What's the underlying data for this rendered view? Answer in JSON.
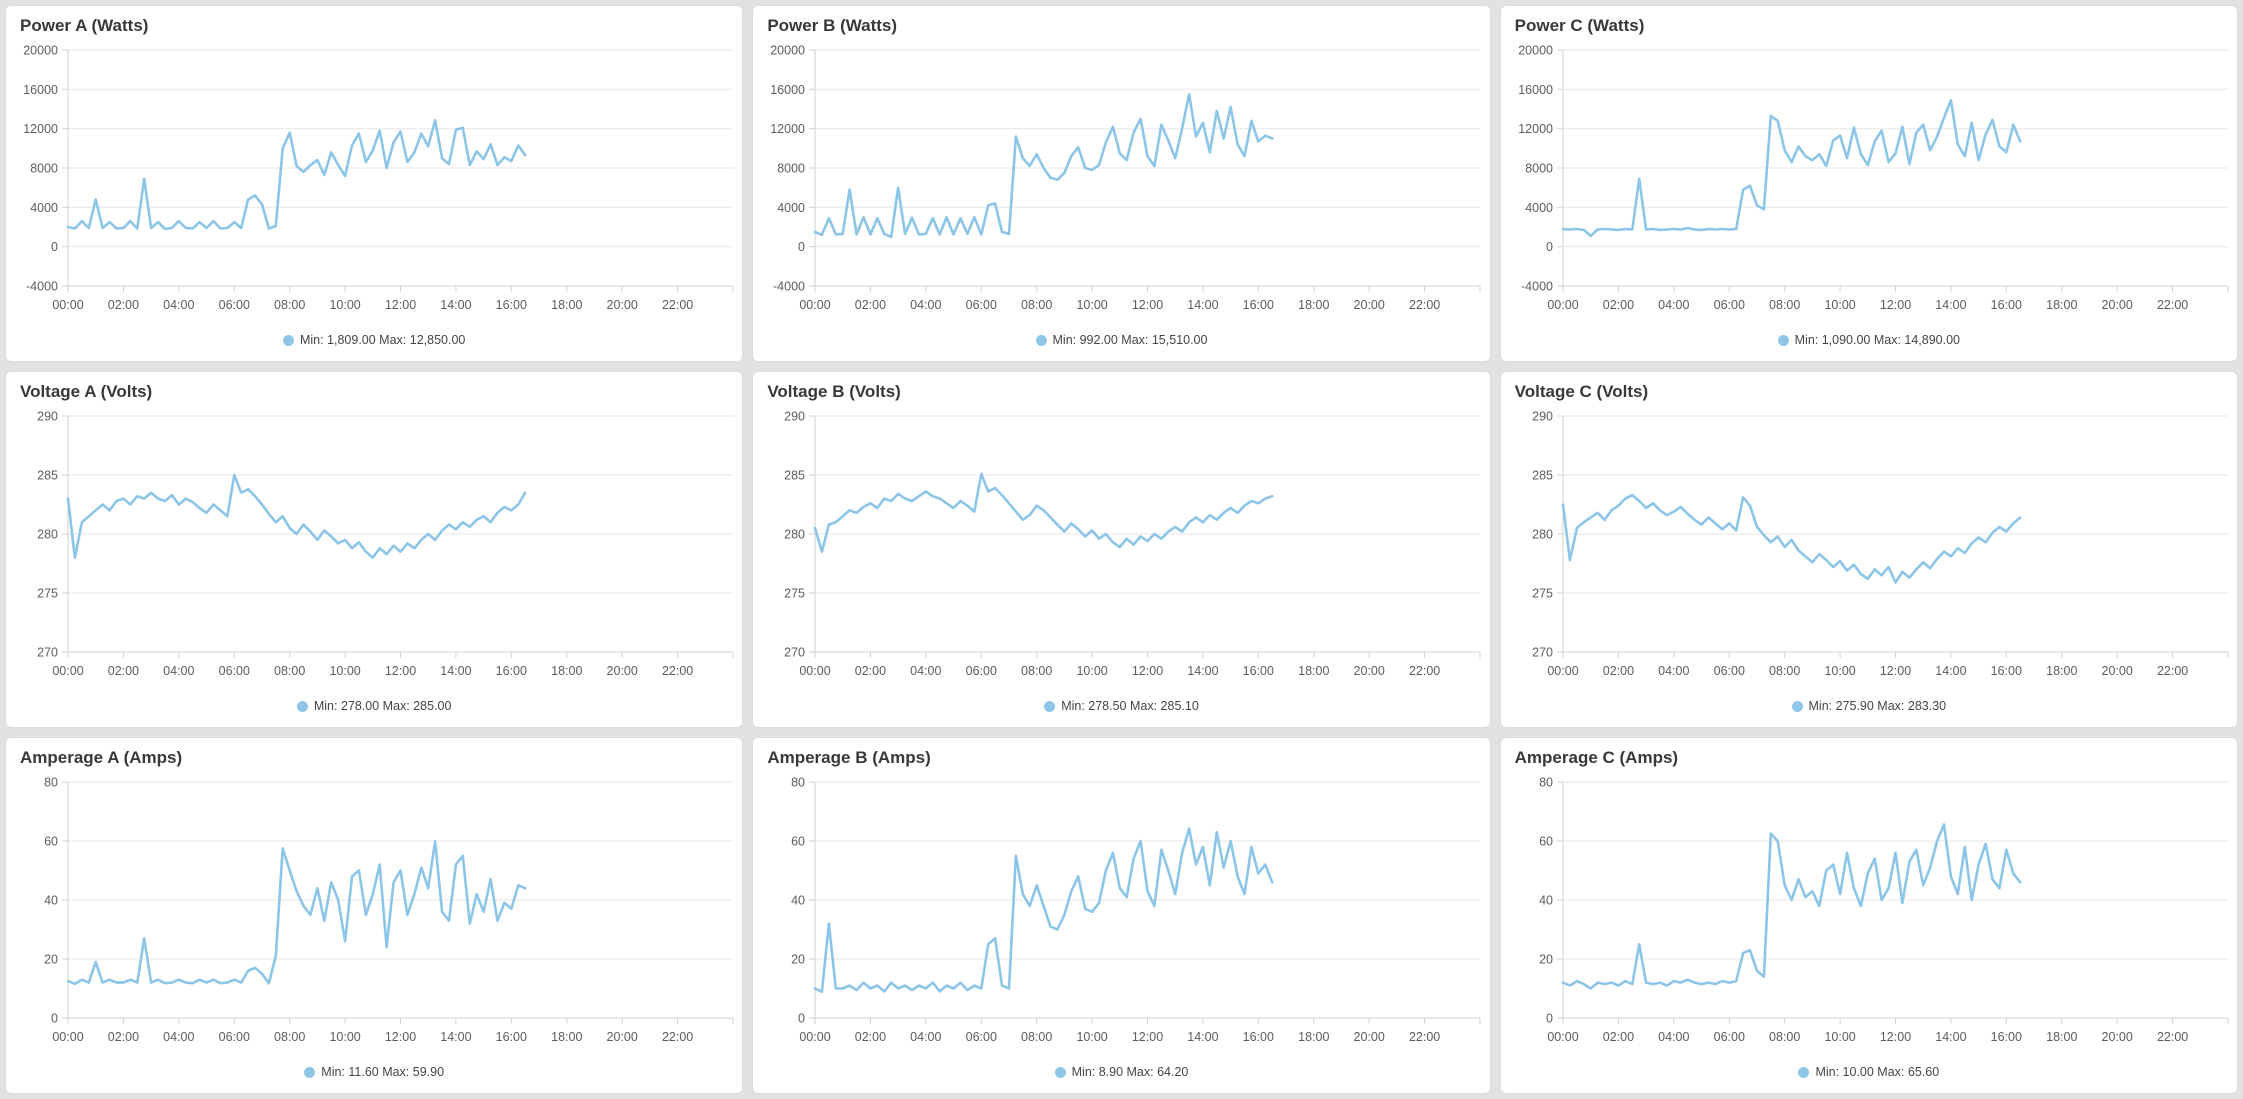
{
  "colors": {
    "page_bg": "#e2e2e2",
    "card_bg": "#ffffff",
    "card_border": "#dcdcdc",
    "series": "#8CC5E8",
    "legend_dot": "#8FC6E8",
    "grid": "#e7e7e7",
    "axis": "#d2d2d2",
    "tick_label": "#5c5c5c",
    "title_text": "#383838",
    "legend_text": "#454545"
  },
  "x_axis": {
    "labels": [
      "00:00",
      "02:00",
      "04:00",
      "06:00",
      "08:00",
      "10:00",
      "12:00",
      "14:00",
      "16:00",
      "18:00",
      "20:00",
      "22:00"
    ],
    "label_step_hours": 2,
    "domain": [
      0,
      24
    ]
  },
  "chart_data": [
    {
      "type": "line",
      "title": "Power A (Watts)",
      "legend_label": "Min: 1,809.00 Max: 12,850.00",
      "min": 1809.0,
      "max": 12850.0,
      "ylabel": "Watts",
      "y_min": -4000,
      "y_max": 20000,
      "y_ticks": [
        -4000,
        0,
        4000,
        8000,
        12000,
        16000,
        20000
      ],
      "x_domain": [
        0,
        24
      ],
      "series": {
        "start": 0,
        "step": 0.25,
        "values": [
          2000,
          1850,
          2600,
          1900,
          4800,
          1900,
          2500,
          1850,
          1900,
          2600,
          1850,
          6900,
          1900,
          2500,
          1809,
          1900,
          2600,
          1900,
          1850,
          2500,
          1900,
          2600,
          1850,
          1900,
          2500,
          1900,
          4800,
          5200,
          4300,
          1850,
          2100,
          10000,
          11600,
          8200,
          7600,
          8300,
          8800,
          7300,
          9600,
          8300,
          7200,
          10300,
          11500,
          8600,
          9800,
          11800,
          8000,
          10600,
          11700,
          8600,
          9600,
          11500,
          10200,
          12850,
          9000,
          8400,
          11900,
          12100,
          8300,
          9700,
          8900,
          10400,
          8300,
          9100,
          8700,
          10300,
          9300
        ]
      }
    },
    {
      "type": "line",
      "title": "Power B (Watts)",
      "legend_label": "Min: 992.00 Max: 15,510.00",
      "min": 992.0,
      "max": 15510.0,
      "ylabel": "Watts",
      "y_min": -4000,
      "y_max": 20000,
      "y_ticks": [
        -4000,
        0,
        4000,
        8000,
        12000,
        16000,
        20000
      ],
      "x_domain": [
        0,
        24
      ],
      "series": {
        "start": 0,
        "step": 0.25,
        "values": [
          1500,
          1200,
          2900,
          1250,
          1300,
          5800,
          1250,
          3000,
          1250,
          2900,
          1300,
          992,
          6000,
          1300,
          2950,
          1250,
          1300,
          2900,
          1250,
          3000,
          1250,
          2900,
          1300,
          3000,
          1250,
          4200,
          4400,
          1500,
          1300,
          11200,
          9000,
          8200,
          9400,
          8000,
          7000,
          6800,
          7500,
          9200,
          10100,
          8000,
          7800,
          8300,
          10600,
          12200,
          9500,
          8800,
          11600,
          13000,
          9200,
          8200,
          12400,
          10800,
          9000,
          12000,
          15510,
          11200,
          12600,
          9600,
          13800,
          11000,
          14200,
          10400,
          9200,
          12800,
          10700,
          11300,
          11000
        ]
      }
    },
    {
      "type": "line",
      "title": "Power C (Watts)",
      "legend_label": "Min: 1,090.00 Max: 14,890.00",
      "min": 1090.0,
      "max": 14890.0,
      "ylabel": "Watts",
      "y_min": -4000,
      "y_max": 20000,
      "y_ticks": [
        -4000,
        0,
        4000,
        8000,
        12000,
        16000,
        20000
      ],
      "x_domain": [
        0,
        24
      ],
      "series": {
        "start": 0,
        "step": 0.25,
        "values": [
          1800,
          1750,
          1800,
          1700,
          1090,
          1750,
          1800,
          1750,
          1700,
          1800,
          1750,
          6900,
          1750,
          1800,
          1700,
          1750,
          1800,
          1750,
          1900,
          1750,
          1700,
          1800,
          1750,
          1800,
          1750,
          1800,
          5800,
          6200,
          4200,
          3800,
          13300,
          12800,
          9800,
          8600,
          10200,
          9200,
          8800,
          9400,
          8200,
          10800,
          11300,
          9000,
          12100,
          9400,
          8300,
          10700,
          11800,
          8600,
          9500,
          12200,
          8400,
          11600,
          12400,
          9800,
          11200,
          13100,
          14890,
          10400,
          9200,
          12600,
          8800,
          11400,
          12900,
          10200,
          9600,
          12400,
          10700
        ]
      }
    },
    {
      "type": "line",
      "title": "Voltage A (Volts)",
      "legend_label": "Min: 278.00 Max: 285.00",
      "min": 278.0,
      "max": 285.0,
      "ylabel": "Volts",
      "y_min": 270,
      "y_max": 290,
      "y_ticks": [
        270,
        275,
        280,
        285,
        290
      ],
      "x_domain": [
        0,
        24
      ],
      "series": {
        "start": 0,
        "step": 0.25,
        "values": [
          283,
          278,
          281,
          281.5,
          282,
          282.5,
          282,
          282.8,
          283,
          282.5,
          283.2,
          283,
          283.5,
          283,
          282.8,
          283.3,
          282.5,
          283,
          282.7,
          282.2,
          281.8,
          282.5,
          282,
          281.5,
          285,
          283.5,
          283.8,
          283.2,
          282.5,
          281.7,
          281,
          281.5,
          280.5,
          280,
          280.8,
          280.2,
          279.5,
          280.3,
          279.8,
          279.2,
          279.5,
          278.8,
          279.3,
          278.5,
          278,
          278.8,
          278.3,
          279,
          278.5,
          279.2,
          278.8,
          279.5,
          280,
          279.5,
          280.3,
          280.8,
          280.4,
          281,
          280.6,
          281.2,
          281.5,
          281,
          281.8,
          282.3,
          282,
          282.5,
          283.5
        ]
      }
    },
    {
      "type": "line",
      "title": "Voltage B (Volts)",
      "legend_label": "Min: 278.50 Max: 285.10",
      "min": 278.5,
      "max": 285.1,
      "ylabel": "Volts",
      "y_min": 270,
      "y_max": 290,
      "y_ticks": [
        270,
        275,
        280,
        285,
        290
      ],
      "x_domain": [
        0,
        24
      ],
      "series": {
        "start": 0,
        "step": 0.25,
        "values": [
          280.5,
          278.5,
          280.8,
          281,
          281.5,
          282,
          281.8,
          282.3,
          282.6,
          282.2,
          283,
          282.8,
          283.4,
          283,
          282.8,
          283.2,
          283.6,
          283.2,
          283,
          282.6,
          282.2,
          282.8,
          282.4,
          281.9,
          285.1,
          283.6,
          283.9,
          283.3,
          282.6,
          281.9,
          281.2,
          281.6,
          282.4,
          282,
          281.4,
          280.8,
          280.2,
          280.9,
          280.4,
          279.8,
          280.3,
          279.6,
          280,
          279.3,
          278.9,
          279.6,
          279.1,
          279.8,
          279.4,
          280,
          279.6,
          280.2,
          280.6,
          280.2,
          281,
          281.4,
          281,
          281.6,
          281.2,
          281.8,
          282.2,
          281.8,
          282.4,
          282.8,
          282.6,
          283,
          283.2
        ]
      }
    },
    {
      "type": "line",
      "title": "Voltage C (Volts)",
      "legend_label": "Min: 275.90 Max: 283.30",
      "min": 275.9,
      "max": 283.3,
      "ylabel": "Volts",
      "y_min": 270,
      "y_max": 290,
      "y_ticks": [
        270,
        275,
        280,
        285,
        290
      ],
      "x_domain": [
        0,
        24
      ],
      "series": {
        "start": 0,
        "step": 0.25,
        "values": [
          282.5,
          277.8,
          280.5,
          281,
          281.4,
          281.8,
          281.2,
          282,
          282.4,
          283,
          283.3,
          282.8,
          282.2,
          282.6,
          282,
          281.6,
          281.9,
          282.3,
          281.7,
          281.2,
          280.8,
          281.4,
          280.9,
          280.4,
          280.9,
          280.3,
          283.1,
          282.4,
          280.6,
          279.9,
          279.3,
          279.8,
          278.9,
          279.5,
          278.6,
          278.1,
          277.6,
          278.3,
          277.8,
          277.2,
          277.7,
          276.9,
          277.4,
          276.6,
          276.2,
          277,
          276.5,
          277.2,
          275.9,
          276.8,
          276.3,
          277,
          277.6,
          277.1,
          277.9,
          278.5,
          278.1,
          278.8,
          278.4,
          279.2,
          279.7,
          279.3,
          280.1,
          280.6,
          280.2,
          280.9,
          281.4
        ]
      }
    },
    {
      "type": "line",
      "title": "Amperage A (Amps)",
      "legend_label": "Min: 11.60 Max: 59.90",
      "min": 11.6,
      "max": 59.9,
      "ylabel": "Amps",
      "y_min": 0,
      "y_max": 80,
      "y_ticks": [
        0,
        20,
        40,
        60,
        80
      ],
      "x_domain": [
        0,
        24
      ],
      "series": {
        "start": 0,
        "step": 0.25,
        "values": [
          12.5,
          11.6,
          13,
          12,
          19,
          12,
          13,
          12,
          12,
          13,
          12,
          27,
          12,
          13,
          11.8,
          12,
          13,
          12,
          11.8,
          13,
          12,
          13,
          11.8,
          12,
          13,
          12,
          16,
          17,
          15,
          11.8,
          21,
          57.5,
          50,
          43,
          38,
          35,
          44,
          33,
          46,
          40,
          26,
          48,
          50,
          35,
          42,
          52,
          24,
          46,
          50,
          35,
          42,
          51,
          44,
          59.9,
          36,
          33,
          52,
          55,
          32,
          42,
          36,
          47,
          33,
          39,
          37,
          45,
          44
        ]
      }
    },
    {
      "type": "line",
      "title": "Amperage B (Amps)",
      "legend_label": "Min: 8.90 Max: 64.20",
      "min": 8.9,
      "max": 64.2,
      "ylabel": "Amps",
      "y_min": 0,
      "y_max": 80,
      "y_ticks": [
        0,
        20,
        40,
        60,
        80
      ],
      "x_domain": [
        0,
        24
      ],
      "series": {
        "start": 0,
        "step": 0.25,
        "values": [
          10,
          8.9,
          32,
          10,
          10,
          11,
          9.5,
          12,
          10,
          11,
          9,
          12,
          10,
          11,
          9.5,
          11,
          10,
          12,
          9,
          11,
          10,
          12,
          9.5,
          11,
          10,
          25,
          27,
          11,
          10,
          55,
          42,
          38,
          45,
          38,
          31,
          30,
          35,
          43,
          48,
          37,
          36,
          39,
          50,
          56,
          44,
          41,
          54,
          60,
          43,
          38,
          57,
          50,
          42,
          56,
          64.2,
          52,
          58,
          45,
          63,
          51,
          60,
          48,
          42,
          58,
          49,
          52,
          46
        ]
      }
    },
    {
      "type": "line",
      "title": "Amperage C (Amps)",
      "legend_label": "Min: 10.00 Max: 65.60",
      "min": 10.0,
      "max": 65.6,
      "ylabel": "Amps",
      "y_min": 0,
      "y_max": 80,
      "y_ticks": [
        0,
        20,
        40,
        60,
        80
      ],
      "x_domain": [
        0,
        24
      ],
      "series": {
        "start": 0,
        "step": 0.25,
        "values": [
          12,
          11,
          12.5,
          11.5,
          10,
          12,
          11.5,
          12,
          11,
          12.5,
          11.5,
          25,
          12,
          11.5,
          12,
          11,
          12.5,
          12,
          13,
          12,
          11.5,
          12,
          11.5,
          12.5,
          12,
          12.5,
          22,
          23,
          16,
          14,
          62.5,
          60,
          45,
          40,
          47,
          41,
          43,
          38,
          50,
          52,
          42,
          56,
          44,
          38,
          49,
          54,
          40,
          44,
          56,
          39,
          53,
          57,
          45,
          51,
          60,
          65.6,
          48,
          42,
          58,
          40,
          52,
          59,
          47,
          44,
          57,
          49,
          46
        ]
      }
    }
  ]
}
